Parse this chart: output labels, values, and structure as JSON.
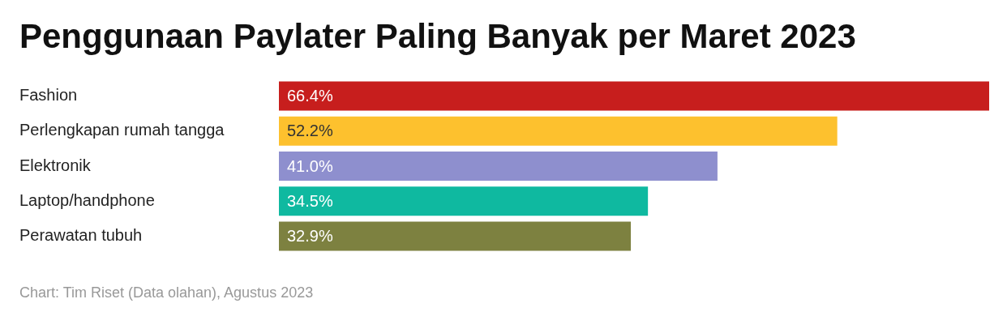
{
  "chart_data": {
    "type": "bar",
    "orientation": "horizontal",
    "title": "Penggunaan Paylater Paling Banyak per Maret 2023",
    "categories": [
      "Fashion",
      "Perlengkapan rumah tangga",
      "Elektronik",
      "Laptop/handphone",
      "Perawatan tubuh"
    ],
    "values": [
      66.4,
      52.2,
      41.0,
      34.5,
      32.9
    ],
    "colors": [
      "#c71e1d",
      "#fdc12e",
      "#8e8fce",
      "#0fb9a0",
      "#7d8140"
    ],
    "value_labels": [
      "66.4%",
      "52.2%",
      "41.0%",
      "34.5%",
      "32.9%"
    ],
    "legend": false,
    "annotations": [
      "Chart: Tim Riset (Data olahan), Agustus 2023"
    ]
  }
}
